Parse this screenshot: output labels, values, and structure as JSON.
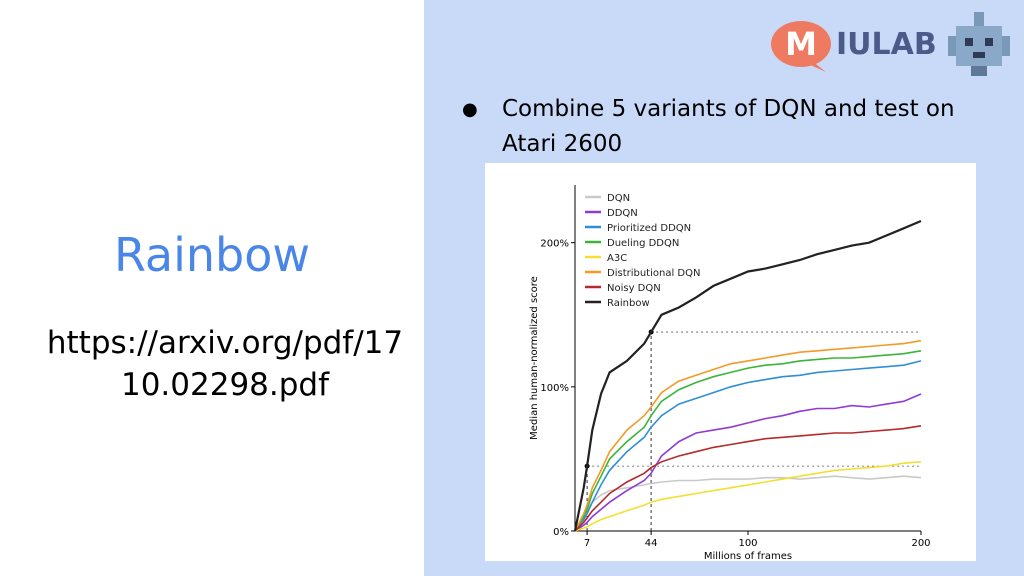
{
  "slide": {
    "title": "Rainbow",
    "url": "https://arxiv.org/pdf/1710.02298.pdf",
    "bullet": "Combine 5 variants of DQN and test on Atari 2600",
    "logo_text": "IULAB",
    "logo_letter": "M"
  },
  "colors": {
    "accent": "#4a86e8",
    "panel": "#c9daf8"
  },
  "chart_data": {
    "type": "line",
    "xlabel": "Millions of frames",
    "ylabel": "Median human-normalized score",
    "xticks": [
      "7",
      "44",
      "100",
      "200"
    ],
    "yticks": [
      "0%",
      "100%",
      "200%"
    ],
    "xlim": [
      0,
      200
    ],
    "ylim": [
      0,
      240
    ],
    "legend_position": "top-left",
    "reference_lines": [
      {
        "x": 7,
        "y": 45
      },
      {
        "x": 44,
        "y": 138
      }
    ],
    "x": [
      0,
      5,
      7,
      10,
      15,
      20,
      30,
      40,
      44,
      50,
      60,
      70,
      80,
      90,
      100,
      110,
      120,
      130,
      140,
      150,
      160,
      170,
      180,
      190,
      200
    ],
    "series": [
      {
        "name": "DQN",
        "color": "#c9c9c9",
        "values": [
          0,
          10,
          15,
          20,
          25,
          28,
          30,
          32,
          33,
          34,
          35,
          35,
          36,
          36,
          36,
          37,
          37,
          36,
          37,
          38,
          37,
          36,
          37,
          38,
          37
        ]
      },
      {
        "name": "DDQN",
        "color": "#8e3bd6",
        "values": [
          0,
          4,
          6,
          10,
          15,
          20,
          28,
          35,
          40,
          52,
          62,
          68,
          70,
          72,
          75,
          78,
          80,
          83,
          85,
          85,
          87,
          86,
          88,
          90,
          95
        ]
      },
      {
        "name": "Prioritized DDQN",
        "color": "#2e8fd8",
        "values": [
          0,
          8,
          12,
          20,
          32,
          42,
          55,
          65,
          72,
          80,
          88,
          92,
          96,
          100,
          103,
          105,
          107,
          108,
          110,
          111,
          112,
          113,
          114,
          115,
          118
        ]
      },
      {
        "name": "Dueling DDQN",
        "color": "#3ab53a",
        "values": [
          0,
          10,
          15,
          26,
          38,
          50,
          62,
          72,
          80,
          90,
          98,
          103,
          107,
          110,
          113,
          115,
          116,
          118,
          119,
          120,
          120,
          121,
          122,
          123,
          125
        ]
      },
      {
        "name": "A3C",
        "color": "#f2e030",
        "values": [
          0,
          2,
          3,
          5,
          8,
          10,
          14,
          18,
          20,
          22,
          24,
          26,
          28,
          30,
          32,
          34,
          36,
          38,
          40,
          42,
          43,
          44,
          45,
          47,
          48
        ]
      },
      {
        "name": "Distributional DQN",
        "color": "#f39a28",
        "values": [
          0,
          12,
          18,
          30,
          42,
          55,
          70,
          80,
          86,
          96,
          104,
          108,
          112,
          116,
          118,
          120,
          122,
          124,
          125,
          126,
          127,
          128,
          129,
          130,
          132
        ]
      },
      {
        "name": "Noisy DQN",
        "color": "#b52a2a",
        "values": [
          0,
          6,
          9,
          14,
          20,
          26,
          34,
          40,
          44,
          48,
          52,
          55,
          58,
          60,
          62,
          64,
          65,
          66,
          67,
          68,
          68,
          69,
          70,
          71,
          73
        ]
      },
      {
        "name": "Rainbow",
        "color": "#222222",
        "values": [
          0,
          30,
          45,
          70,
          95,
          110,
          118,
          130,
          138,
          150,
          155,
          162,
          170,
          175,
          180,
          182,
          185,
          188,
          192,
          195,
          198,
          200,
          205,
          210,
          215
        ]
      }
    ]
  }
}
